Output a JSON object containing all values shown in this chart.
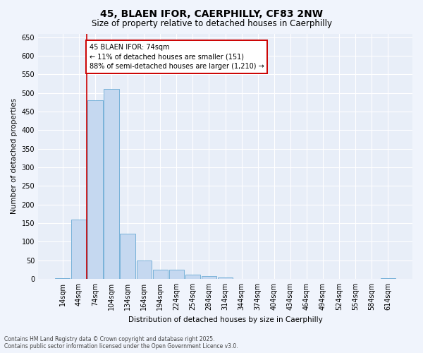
{
  "title": "45, BLAEN IFOR, CAERPHILLY, CF83 2NW",
  "subtitle": "Size of property relative to detached houses in Caerphilly",
  "xlabel": "Distribution of detached houses by size in Caerphilly",
  "ylabel": "Number of detached properties",
  "categories": [
    "14sqm",
    "44sqm",
    "74sqm",
    "104sqm",
    "134sqm",
    "164sqm",
    "194sqm",
    "224sqm",
    "254sqm",
    "284sqm",
    "314sqm",
    "344sqm",
    "374sqm",
    "404sqm",
    "434sqm",
    "464sqm",
    "494sqm",
    "524sqm",
    "554sqm",
    "584sqm",
    "614sqm"
  ],
  "values": [
    2,
    160,
    480,
    510,
    122,
    50,
    25,
    25,
    12,
    8,
    4,
    0,
    0,
    0,
    0,
    0,
    0,
    0,
    0,
    0,
    2
  ],
  "bar_color": "#c5d8f0",
  "bar_edge_color": "#6aaad4",
  "vline_color": "#cc0000",
  "vline_x_index": 2,
  "ylim": [
    0,
    660
  ],
  "yticks": [
    0,
    50,
    100,
    150,
    200,
    250,
    300,
    350,
    400,
    450,
    500,
    550,
    600,
    650
  ],
  "annotation_title": "45 BLAEN IFOR: 74sqm",
  "annotation_line1": "← 11% of detached houses are smaller (151)",
  "annotation_line2": "88% of semi-detached houses are larger (1,210) →",
  "annotation_box_facecolor": "#ffffff",
  "annotation_box_edgecolor": "#cc0000",
  "bg_color": "#e8eef8",
  "grid_color": "#ffffff",
  "fig_bg_color": "#f0f4fc",
  "footer1": "Contains HM Land Registry data © Crown copyright and database right 2025.",
  "footer2": "Contains public sector information licensed under the Open Government Licence v3.0.",
  "title_fontsize": 10,
  "subtitle_fontsize": 8.5,
  "axis_label_fontsize": 7.5,
  "tick_fontsize": 7,
  "annotation_fontsize": 7,
  "footer_fontsize": 5.5
}
